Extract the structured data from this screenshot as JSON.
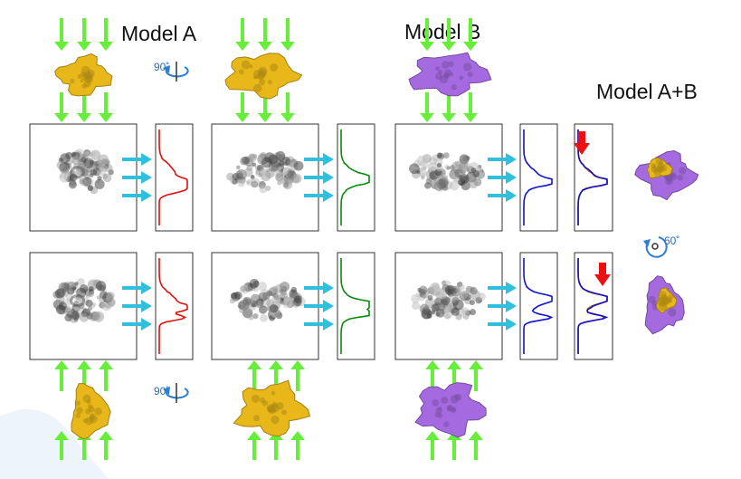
{
  "labels": {
    "model_a": "Model A",
    "model_b": "Model B",
    "model_ab": "Model A+B"
  },
  "rotations": {
    "top": "90˚",
    "bottom": "90˚",
    "combined": "60˚"
  },
  "colors": {
    "model_a_density": "#e8b81a",
    "model_b_density": "#a56ae0",
    "projection_arrow": "#66ee3a",
    "sampling_arrow": "#2fc0dd",
    "profile_model_a": "#e01010",
    "profile_model_b_fit": "#0a8a0a",
    "profile_model_b": "#1010d0",
    "profile_combined": "#c86010",
    "difference_marker": "#ee1010",
    "rotation_icon": "#2b7fd0"
  }
}
